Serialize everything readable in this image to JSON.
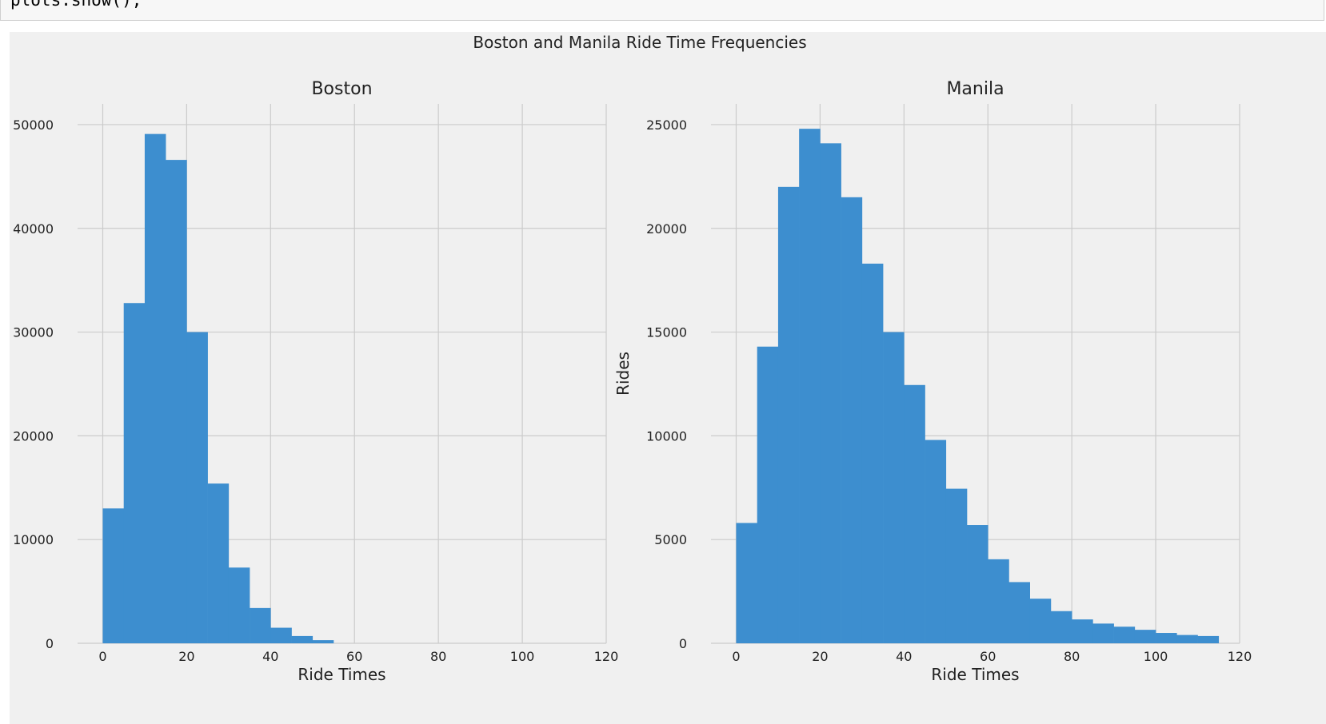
{
  "code": {
    "line": "plots.show();"
  },
  "figure": {
    "suptitle": "Boston and Manila Ride Time Frequencies"
  },
  "colors": {
    "bar": "#3d8ecf",
    "grid": "#cbcbcb",
    "background": "#f0f0f0"
  },
  "chart_data": [
    {
      "type": "bar",
      "title": "Boston",
      "xlabel": "Ride Times",
      "ylabel": "Rides",
      "xlim": [
        -6,
        120
      ],
      "ylim": [
        0,
        52000
      ],
      "xticks": [
        0,
        20,
        40,
        60,
        80,
        100,
        120
      ],
      "yticks": [
        0,
        10000,
        20000,
        30000,
        40000,
        50000
      ],
      "bin_width": 5,
      "bin_starts": [
        0,
        5,
        10,
        15,
        20,
        25,
        30,
        35,
        40,
        45,
        50
      ],
      "values": [
        13000,
        32800,
        49100,
        46600,
        30000,
        15400,
        7300,
        3400,
        1500,
        700,
        300
      ],
      "grid": true
    },
    {
      "type": "bar",
      "title": "Manila",
      "xlabel": "Ride Times",
      "ylabel": "Rides",
      "xlim": [
        -6,
        120
      ],
      "ylim": [
        0,
        26000
      ],
      "xticks": [
        0,
        20,
        40,
        60,
        80,
        100,
        120
      ],
      "yticks": [
        0,
        5000,
        10000,
        15000,
        20000,
        25000
      ],
      "bin_width": 5,
      "bin_starts": [
        0,
        5,
        10,
        15,
        20,
        25,
        30,
        35,
        40,
        45,
        50,
        55,
        60,
        65,
        70,
        75,
        80,
        85,
        90,
        95,
        100,
        105,
        110
      ],
      "values": [
        5800,
        14300,
        22000,
        24800,
        24100,
        21500,
        18300,
        15000,
        12450,
        9800,
        7450,
        5700,
        4050,
        2950,
        2150,
        1550,
        1150,
        950,
        800,
        650,
        500,
        400,
        350
      ],
      "grid": true
    }
  ]
}
